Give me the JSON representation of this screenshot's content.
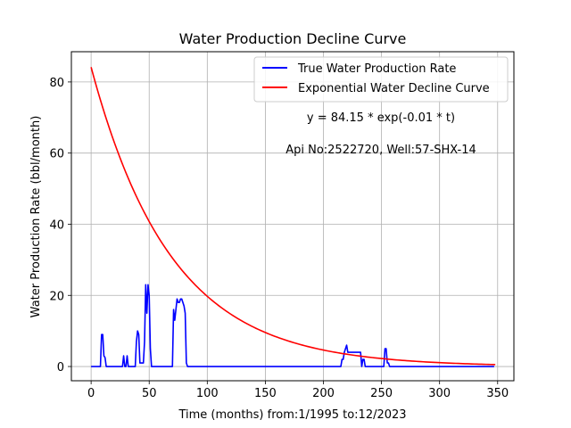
{
  "chart_data": {
    "type": "line",
    "title": "Water Production Decline Curve",
    "xlabel": "Time (months) from:1/1995 to:12/2023",
    "ylabel": "Water Production Rate (bbl/month)",
    "xlim": [
      -17,
      364
    ],
    "ylim": [
      -4,
      88.5
    ],
    "xticks": [
      0,
      50,
      100,
      150,
      200,
      250,
      300,
      350
    ],
    "yticks": [
      0,
      20,
      40,
      60,
      80
    ],
    "grid": true,
    "legend_position": "top-right",
    "annotations": [
      {
        "text": "y = 84.15 * exp(-0.01 * t)",
        "x": 250,
        "y": 70
      },
      {
        "text": "Api No:2522720, Well:57-SHX-14",
        "x": 250,
        "y": 61
      }
    ],
    "series": [
      {
        "name": "True Water Production Rate",
        "color": "#0000ff",
        "x": [
          0,
          8,
          9,
          10,
          11,
          12,
          13,
          27,
          28,
          29,
          30,
          31,
          32,
          38,
          39,
          40,
          41,
          42,
          45,
          46,
          47,
          48,
          49,
          50,
          51,
          52,
          53,
          70,
          71,
          72,
          73,
          74,
          75,
          76,
          77,
          78,
          79,
          80,
          81,
          82,
          83,
          84,
          215,
          216,
          217,
          218,
          219,
          220,
          221,
          232,
          233,
          234,
          235,
          236,
          237,
          252,
          253,
          254,
          255,
          256,
          257,
          347
        ],
        "y": [
          0,
          0,
          9,
          9,
          3,
          2.5,
          0,
          0,
          3,
          0,
          0,
          3,
          0,
          0,
          7,
          10,
          9,
          1,
          1,
          7,
          23,
          15,
          23,
          20,
          5,
          0,
          0,
          0,
          16,
          13,
          16,
          19,
          18,
          18,
          19,
          19,
          18,
          17,
          15,
          1,
          0,
          0,
          0,
          2,
          2,
          4,
          5,
          6,
          4,
          4,
          0,
          2,
          2,
          0,
          0,
          0,
          5,
          5,
          1,
          1,
          0,
          0
        ]
      },
      {
        "name": "Exponential Water Decline Curve",
        "color": "#ff0000",
        "equation": {
          "a": 84.15,
          "b": 0.0145
        },
        "x_range": [
          0,
          348
        ]
      }
    ]
  }
}
